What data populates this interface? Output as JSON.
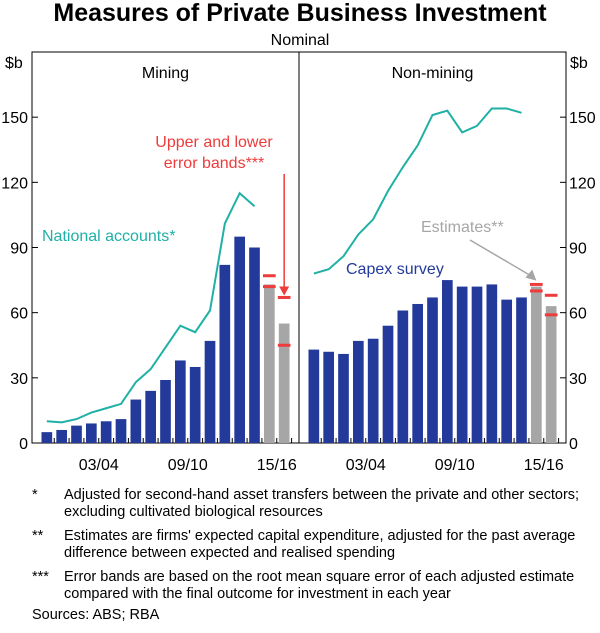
{
  "chart_data": {
    "type": "bar",
    "title": "Measures of Private Business Investment",
    "subtitle": "Nominal",
    "unit_left": "$b",
    "unit_right": "$b",
    "ylim": [
      0,
      180
    ],
    "yticks": [
      0,
      30,
      60,
      90,
      120,
      150
    ],
    "x_tick_labels": [
      "03/04",
      "09/10",
      "15/16"
    ],
    "grid": false,
    "panels": [
      {
        "title": "Mining",
        "capex": [
          5,
          6,
          8,
          9,
          10,
          11,
          20,
          24,
          29,
          38,
          35,
          47,
          82,
          95,
          90
        ],
        "estimates": [
          73,
          55
        ],
        "error_bands": [
          {
            "upper": 77,
            "lower": 72
          },
          {
            "upper": 67,
            "lower": 45
          }
        ],
        "national_accounts": [
          10,
          9.5,
          11,
          14,
          16,
          18,
          28,
          34,
          44,
          54,
          51,
          61,
          101,
          115,
          109
        ]
      },
      {
        "title": "Non-mining",
        "capex": [
          43,
          42,
          41,
          47,
          48,
          54,
          61,
          64,
          67,
          75,
          72,
          72,
          73,
          66,
          67
        ],
        "estimates": [
          72,
          63
        ],
        "error_bands": [
          {
            "upper": 73,
            "lower": 70
          },
          {
            "upper": 68,
            "lower": 59
          }
        ],
        "national_accounts": [
          78,
          80,
          86,
          96,
          103,
          116,
          127,
          137,
          151,
          153,
          143,
          146,
          154,
          154,
          152
        ]
      }
    ],
    "colors": {
      "capex": "#233a9b",
      "estimates": "#a6a6a6",
      "national_accounts": "#1fb0a6",
      "error_bands": "#ee3b3b"
    },
    "annotations": {
      "error_bands": [
        "Upper and lower",
        "error bands***"
      ],
      "national_accounts": "National accounts*",
      "capex": "Capex survey",
      "estimates": "Estimates**"
    }
  },
  "notes": [
    {
      "mark": "*",
      "text": "Adjusted for second-hand asset transfers between the private and other sectors; excluding cultivated biological resources"
    },
    {
      "mark": "**",
      "text": "Estimates are firms' expected capital expenditure, adjusted for the past average difference between expected and realised spending"
    },
    {
      "mark": "***",
      "text": "Error bands are based on the root mean square error of each adjusted estimate compared with the final outcome for investment in each year"
    }
  ],
  "sources": "Sources:   ABS; RBA"
}
